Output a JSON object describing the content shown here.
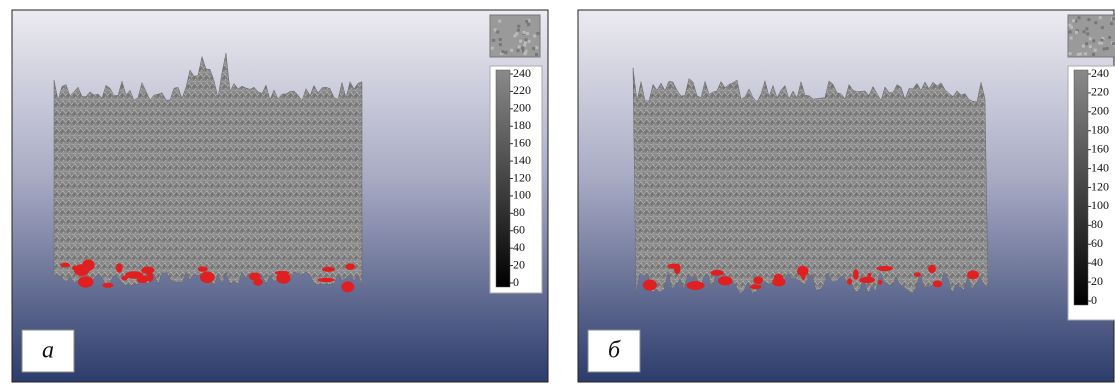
{
  "panels": [
    {
      "label": "а",
      "colorbar": {
        "ticks": [
          240,
          220,
          200,
          180,
          160,
          140,
          120,
          100,
          80,
          60,
          40,
          20,
          0
        ]
      }
    },
    {
      "label": "б",
      "colorbar": {
        "ticks": [
          240,
          220,
          200,
          180,
          160,
          140,
          120,
          100,
          80,
          60,
          40,
          20,
          0
        ]
      }
    }
  ]
}
